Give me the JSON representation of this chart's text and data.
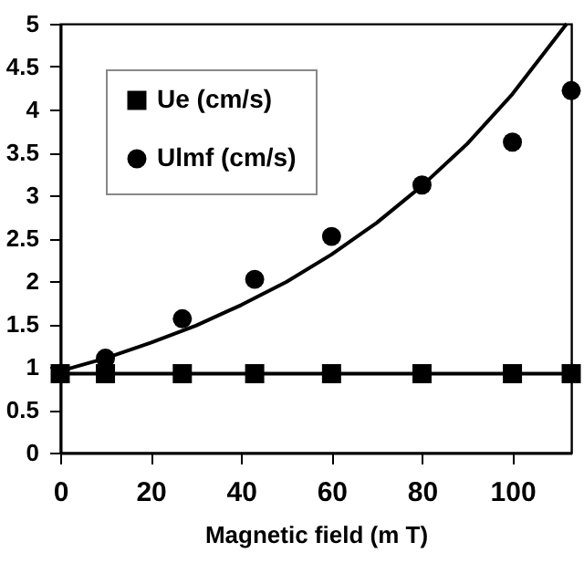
{
  "chart_data": {
    "type": "line",
    "xlabel": "Magnetic field (m T)",
    "xlim": [
      0,
      113
    ],
    "xticks": [
      0,
      20,
      40,
      60,
      80,
      100
    ],
    "ylim": [
      0,
      5
    ],
    "yticks": [
      0,
      0.5,
      1,
      1.5,
      2,
      2.5,
      3,
      3.5,
      4,
      4.5,
      5
    ],
    "grid": false,
    "legend": "top left",
    "series": [
      {
        "name": "Ue (cm/s)",
        "marker": "square",
        "color": "#000000",
        "x": [
          0,
          10,
          27,
          43,
          60,
          80,
          100,
          113
        ],
        "values": [
          0.92,
          0.92,
          0.92,
          0.92,
          0.92,
          0.92,
          0.92,
          0.92
        ]
      },
      {
        "name": "Ulmf (cm/s)",
        "type": "scatter",
        "marker": "circle",
        "color": "#000000",
        "x": [
          10,
          27,
          43,
          60,
          80,
          100,
          113
        ],
        "values": [
          1.1,
          1.56,
          2.02,
          2.52,
          3.12,
          3.62,
          4.22
        ]
      },
      {
        "marker": "none",
        "color": "#000000",
        "x": [
          0,
          10,
          20,
          30,
          40,
          50,
          60,
          70,
          80,
          90,
          100,
          112
        ],
        "values": [
          0.95,
          1.1,
          1.28,
          1.48,
          1.72,
          1.99,
          2.31,
          2.68,
          3.11,
          3.6,
          4.18,
          5.0
        ]
      }
    ]
  }
}
